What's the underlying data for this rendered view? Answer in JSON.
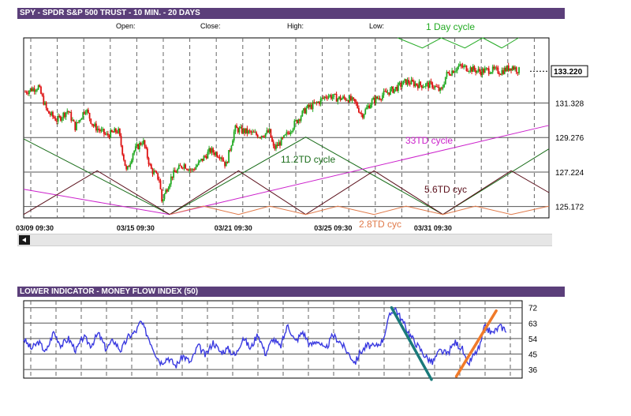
{
  "header": {
    "title": "SPY - SPDR S&P 500 TRUST - 10 MIN. - 20 DAYS"
  },
  "ohlc": {
    "open": "Open:",
    "close": "Close:",
    "high": "High:",
    "low": "Low:"
  },
  "lower": {
    "title": "LOWER INDICATOR - MONEY FLOW INDEX (50)"
  },
  "chart_data": [
    {
      "type": "candlestick",
      "title": "SPY - SPDR S&P 500 TRUST - 10 MIN. - 20 DAYS",
      "x_tick_labels": [
        "03/09 09:30",
        "03/15 09:30",
        "03/21 09:30",
        "03/25 09:30",
        "03/31 09:30"
      ],
      "y_ticks": [
        125.172,
        127.224,
        129.276,
        131.328
      ],
      "y_tick_labels": [
        "125.172",
        "127.224",
        "129.276",
        "131.328"
      ],
      "ylim": [
        124.5,
        135.2
      ],
      "xlim": [
        0,
        100
      ],
      "last_price": "133.220",
      "last_value": 133.22,
      "grid": true,
      "price_path": [
        [
          0.3,
          132.0
        ],
        [
          2.8,
          132.3
        ],
        [
          4.5,
          130.8
        ],
        [
          6.4,
          130.3
        ],
        [
          8.4,
          130.9
        ],
        [
          9.8,
          129.9
        ],
        [
          11.8,
          131.0
        ],
        [
          13.2,
          130.0
        ],
        [
          15.8,
          129.4
        ],
        [
          18.0,
          129.7
        ],
        [
          19.6,
          127.2
        ],
        [
          20.8,
          128.4
        ],
        [
          22.7,
          129.1
        ],
        [
          24.2,
          127.4
        ],
        [
          25.8,
          126.8
        ],
        [
          26.3,
          125.5
        ],
        [
          28.2,
          127.0
        ],
        [
          30.4,
          127.7
        ],
        [
          32.0,
          127.3
        ],
        [
          33.8,
          127.9
        ],
        [
          35.5,
          128.5
        ],
        [
          37.6,
          128.2
        ],
        [
          38.5,
          127.6
        ],
        [
          40.2,
          129.8
        ],
        [
          42.6,
          129.6
        ],
        [
          44.8,
          129.4
        ],
        [
          46.8,
          129.6
        ],
        [
          47.6,
          128.6
        ],
        [
          49.5,
          129.2
        ],
        [
          51.8,
          130.2
        ],
        [
          53.8,
          131.0
        ],
        [
          55.8,
          131.3
        ],
        [
          57.8,
          131.8
        ],
        [
          59.8,
          131.6
        ],
        [
          61.8,
          131.6
        ],
        [
          63.2,
          131.3
        ],
        [
          64.4,
          130.6
        ],
        [
          66.2,
          131.4
        ],
        [
          68.8,
          131.9
        ],
        [
          70.8,
          132.2
        ],
        [
          72.8,
          132.6
        ],
        [
          75.5,
          132.4
        ],
        [
          77.8,
          132.4
        ],
        [
          79.5,
          132.0
        ],
        [
          80.4,
          133.0
        ],
        [
          82.8,
          133.5
        ],
        [
          84.8,
          133.4
        ],
        [
          86.8,
          133.2
        ],
        [
          88.8,
          133.3
        ],
        [
          90.8,
          133.2
        ],
        [
          93.0,
          133.5
        ],
        [
          94.5,
          133.2
        ]
      ],
      "cycles": [
        {
          "name": "1 Day cycle",
          "color": "#22aa22",
          "points": [
            [
              71.2,
              135.2
            ],
            [
              75.9,
              134.6
            ],
            [
              79.5,
              135.2
            ],
            [
              84.0,
              134.6
            ],
            [
              87.4,
              135.2
            ],
            [
              91.0,
              134.6
            ],
            [
              94.2,
              135.2
            ]
          ]
        },
        {
          "name": "11.2TD cycle",
          "color": "#1a6d1a",
          "points": [
            [
              0,
              129.2
            ],
            [
              27.8,
              124.7
            ],
            [
              53.7,
              129.3
            ],
            [
              79.8,
              124.7
            ],
            [
              100,
              128.6
            ]
          ]
        },
        {
          "name": "33TD cycle",
          "color": "#cc22cc",
          "points": [
            [
              0,
              126.2
            ],
            [
              27.8,
              124.7
            ],
            [
              100,
              130.0
            ]
          ]
        },
        {
          "name": "5.6TD cyc",
          "color": "#5a0f1a",
          "points": [
            [
              0,
              124.7
            ],
            [
              14.0,
              127.3
            ],
            [
              27.8,
              124.7
            ],
            [
              40.9,
              127.3
            ],
            [
              53.7,
              124.7
            ],
            [
              66.7,
              127.3
            ],
            [
              79.8,
              124.7
            ],
            [
              92.8,
              127.3
            ],
            [
              100,
              126.0
            ]
          ]
        },
        {
          "name": "2.8TD cyc",
          "color": "#e07a4a",
          "points": [
            [
              27.8,
              124.7
            ],
            [
              34.2,
              125.2
            ],
            [
              40.9,
              124.7
            ],
            [
              46.8,
              125.2
            ],
            [
              53.7,
              124.7
            ],
            [
              59.8,
              125.2
            ],
            [
              66.7,
              124.7
            ],
            [
              72.8,
              125.2
            ],
            [
              79.8,
              124.7
            ],
            [
              86.0,
              125.2
            ],
            [
              92.8,
              124.7
            ],
            [
              100,
              125.2
            ]
          ]
        }
      ]
    },
    {
      "type": "line",
      "title": "LOWER INDICATOR - MONEY FLOW INDEX (50)",
      "y_ticks": [
        36,
        45,
        54,
        63,
        72
      ],
      "y_tick_labels": [
        "36",
        "45",
        "54",
        "63",
        "72"
      ],
      "ylim": [
        31,
        76
      ],
      "xlim": [
        0,
        100
      ],
      "series": [
        {
          "color": "#3a3ae0",
          "values": [
            [
              0.0,
              54
            ],
            [
              1.5,
              48
            ],
            [
              3.0,
              52
            ],
            [
              4.5,
              46
            ],
            [
              6.0,
              58
            ],
            [
              7.5,
              50
            ],
            [
              9.0,
              54
            ],
            [
              10.5,
              47
            ],
            [
              12.0,
              55
            ],
            [
              13.5,
              50
            ],
            [
              15.0,
              57
            ],
            [
              16.5,
              48
            ],
            [
              18.0,
              53
            ],
            [
              19.5,
              47
            ],
            [
              21.0,
              55
            ],
            [
              22.5,
              58
            ],
            [
              23.5,
              64
            ],
            [
              25.0,
              55
            ],
            [
              26.5,
              45
            ],
            [
              27.5,
              40
            ],
            [
              29.0,
              43
            ],
            [
              30.5,
              38
            ],
            [
              32.0,
              44
            ],
            [
              33.5,
              40
            ],
            [
              35.0,
              50
            ],
            [
              36.5,
              44
            ],
            [
              38.0,
              52
            ],
            [
              39.5,
              46
            ],
            [
              41.0,
              48
            ],
            [
              42.5,
              44
            ],
            [
              44.0,
              55
            ],
            [
              45.5,
              48
            ],
            [
              47.0,
              57
            ],
            [
              48.5,
              45
            ],
            [
              50.0,
              54
            ],
            [
              51.5,
              49
            ],
            [
              53.0,
              62
            ],
            [
              54.5,
              52
            ],
            [
              56.0,
              58
            ],
            [
              57.5,
              50
            ],
            [
              59.0,
              53
            ],
            [
              60.5,
              47
            ],
            [
              62.0,
              56
            ],
            [
              63.5,
              52
            ],
            [
              65.0,
              46
            ],
            [
              66.5,
              40
            ],
            [
              67.5,
              46
            ],
            [
              69.0,
              50
            ],
            [
              70.5,
              49
            ],
            [
              72.0,
              53
            ],
            [
              73.5,
              68
            ],
            [
              74.5,
              72
            ],
            [
              76.0,
              64
            ],
            [
              77.5,
              56
            ],
            [
              79.0,
              50
            ],
            [
              80.5,
              44
            ],
            [
              82.0,
              40
            ],
            [
              83.5,
              47
            ],
            [
              85.0,
              45
            ],
            [
              86.5,
              52
            ],
            [
              88.0,
              48
            ],
            [
              89.0,
              38
            ],
            [
              90.0,
              43
            ],
            [
              91.5,
              49
            ],
            [
              92.5,
              61
            ],
            [
              94.0,
              57
            ],
            [
              95.5,
              61
            ],
            [
              97.0,
              59
            ]
          ]
        }
      ],
      "trendlines": [
        {
          "color": "#1a7a7a",
          "points": [
            [
              73.8,
              72
            ],
            [
              81.8,
              32
            ]
          ]
        },
        {
          "color": "#f07a2a",
          "points": [
            [
              86.8,
              32
            ],
            [
              94.8,
              72
            ]
          ]
        }
      ]
    }
  ]
}
